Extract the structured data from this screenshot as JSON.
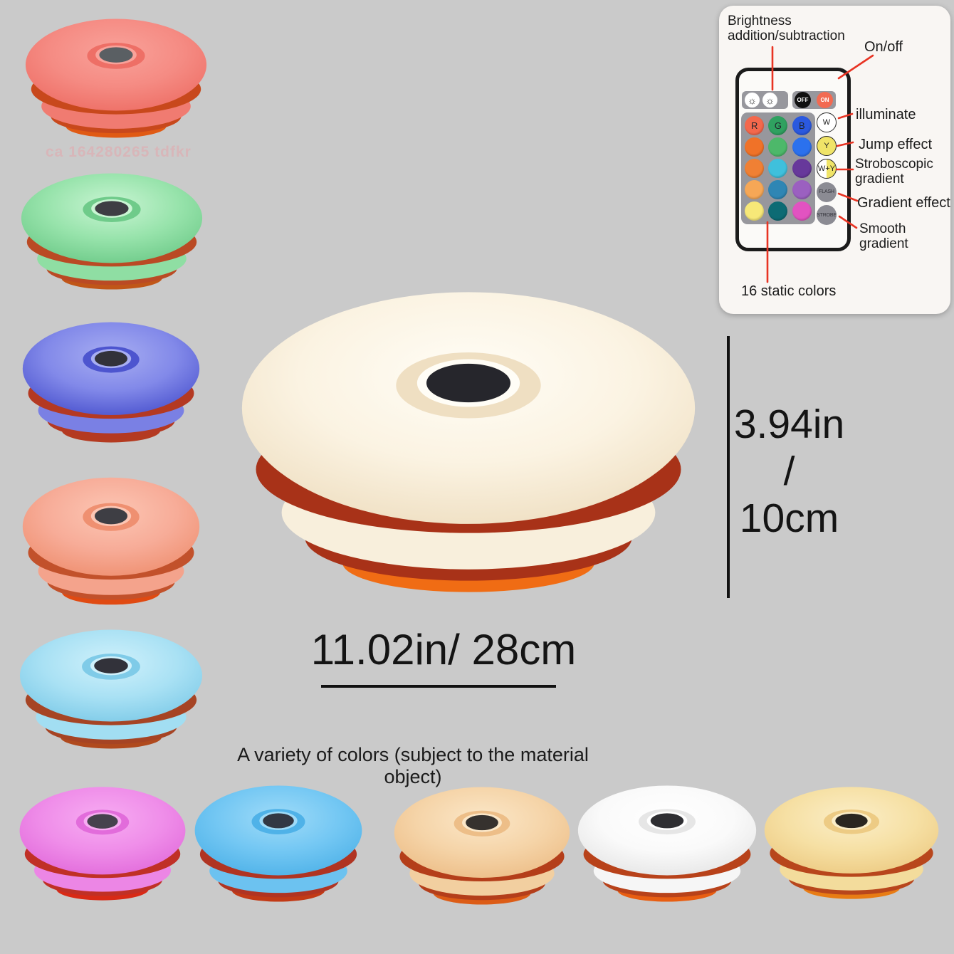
{
  "page": {
    "background": "#cacaca"
  },
  "watermark": {
    "text": "ca 164280265 tdfkr"
  },
  "panel": {
    "labels": {
      "brightness": "Brightness\naddition/subtraction",
      "on_off": "On/off",
      "illuminate": "illuminate",
      "jump": "Jump effect",
      "stroboscopic": "Stroboscopic\ngradient",
      "gradient": "Gradient effect",
      "smooth": "Smooth\ngradient",
      "static_colors": "16 static colors"
    },
    "remote": {
      "off": "OFF",
      "on": "ON",
      "brightness_icons": [
        "☼",
        "☼"
      ],
      "accent_line_color": "#e83322",
      "grid": [
        {
          "color": "#f4684c",
          "label": "R"
        },
        {
          "color": "#2fa160",
          "label": "G"
        },
        {
          "color": "#2b59df",
          "label": "B"
        },
        {
          "color": "#f07228",
          "label": ""
        },
        {
          "color": "#4db86a",
          "label": ""
        },
        {
          "color": "#2b71ee",
          "label": ""
        },
        {
          "color": "#f08034",
          "label": ""
        },
        {
          "color": "#3fc0dc",
          "label": ""
        },
        {
          "color": "#67399b",
          "label": ""
        },
        {
          "color": "#f6a756",
          "label": ""
        },
        {
          "color": "#2f86b4",
          "label": ""
        },
        {
          "color": "#9b60c0",
          "label": ""
        },
        {
          "color": "#f7e878",
          "label": ""
        },
        {
          "color": "#0d6b74",
          "label": ""
        },
        {
          "color": "#e253c1",
          "label": ""
        }
      ],
      "side": [
        {
          "label": "W",
          "bg": "#ffffff",
          "bg2": "",
          "split": false,
          "border": true,
          "text": "#222222"
        },
        {
          "label": "Y",
          "bg": "#f0e468",
          "bg2": "",
          "split": false,
          "border": true,
          "text": "#222222"
        },
        {
          "label": "W+Y",
          "bg": "#ffffff",
          "bg2": "#f0e468",
          "split": true,
          "border": true,
          "text": "#222222"
        },
        {
          "label": "FLASH",
          "bg": "#8b8b93",
          "bg2": "",
          "split": false,
          "border": false,
          "text": "#33333a"
        },
        {
          "label": "STROBE",
          "bg": "#8b8b93",
          "bg2": "",
          "split": false,
          "border": false,
          "text": "#33333a"
        }
      ]
    }
  },
  "dimensions": {
    "height_value": "3.94in",
    "height_separator": "/",
    "height_value_cm": "10cm",
    "width_value": "11.02in/ 28cm"
  },
  "note": "A variety of colors (subject to the material object)",
  "lamps": {
    "left": [
      {
        "name": "coral-red",
        "highlight": "#f9a29a",
        "body": "#f58b83",
        "edge": "#ee6f66",
        "stripe": "#c8481c",
        "band": "#f07b71",
        "base": "#e05a14",
        "hole": "#5a5f63"
      },
      {
        "name": "mint-green",
        "highlight": "#c9f5d3",
        "body": "#97e3ab",
        "edge": "#6fcb8a",
        "stripe": "#ba4a24",
        "band": "#8fdea3",
        "base": "#c05618",
        "hole": "#3e3e44"
      },
      {
        "name": "periwinkle-blue",
        "highlight": "#a8aef2",
        "body": "#8289e9",
        "edge": "#4d55cf",
        "stripe": "#b43922",
        "band": "#7a80e4",
        "base": "#b43a20",
        "hole": "#32323a"
      },
      {
        "name": "salmon",
        "highlight": "#fcc6b4",
        "body": "#f7ac98",
        "edge": "#ef9071",
        "stripe": "#c2512b",
        "band": "#f4a38c",
        "base": "#e04a12",
        "hole": "#3e3e44"
      },
      {
        "name": "light-blue",
        "highlight": "#d0f1fb",
        "body": "#a9e1f4",
        "edge": "#7fcbe8",
        "stripe": "#a64424",
        "band": "#a2def2",
        "base": "#b04a1e",
        "hole": "#32323a"
      }
    ],
    "center": {
      "name": "warm-white",
      "highlight": "#fffdf6",
      "body": "#fbf3e2",
      "edge": "#efdfc2",
      "stripe": "#a83218",
      "band": "#f8efdc",
      "base": "#f06c14",
      "hole": "#26262c"
    },
    "bottom": [
      {
        "name": "orchid-pink",
        "highlight": "#f7acf2",
        "body": "#ef8de9",
        "edge": "#e26cdb",
        "stripe": "#c03026",
        "band": "#ec86e5",
        "base": "#d82a16",
        "hole": "#46424e"
      },
      {
        "name": "sky-blue",
        "highlight": "#9fdbf8",
        "body": "#73c7f3",
        "edge": "#4fb2e8",
        "stripe": "#b03422",
        "band": "#6cc2f0",
        "base": "#c23a16",
        "hole": "#323844"
      },
      {
        "name": "tan-beige",
        "highlight": "#fbe7c8",
        "body": "#f5d4a8",
        "edge": "#edbe88",
        "stripe": "#b43e1a",
        "band": "#f2cfa0",
        "base": "#dc5c16",
        "hole": "#36322e"
      },
      {
        "name": "white",
        "highlight": "#ffffff",
        "body": "#fafafa",
        "edge": "#e6e6e6",
        "stripe": "#b8421a",
        "band": "#f6f6f6",
        "base": "#e85e12",
        "hole": "#2e2e32"
      },
      {
        "name": "cream-yellow",
        "highlight": "#fbeec8",
        "body": "#f6e0a4",
        "edge": "#edcb84",
        "stripe": "#b8461c",
        "band": "#f3dc9c",
        "base": "#e87c14",
        "hole": "#2a2620"
      }
    ]
  }
}
